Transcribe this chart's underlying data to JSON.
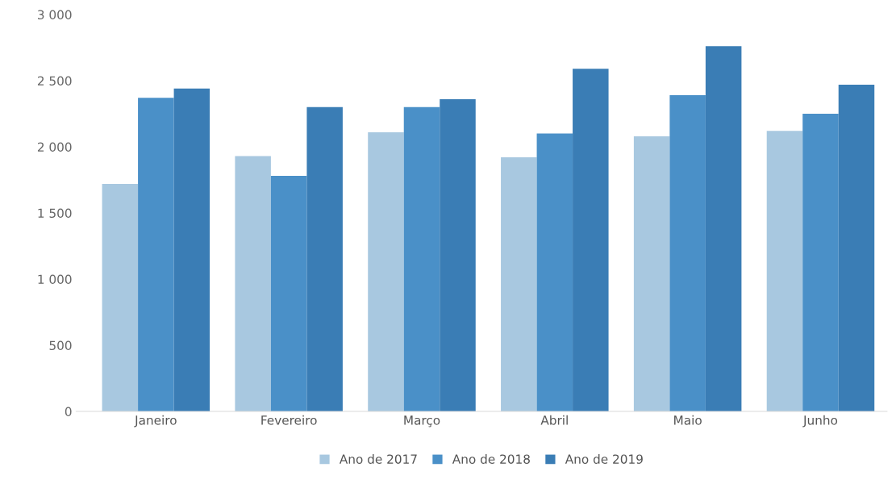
{
  "chart_data": {
    "type": "bar",
    "categories": [
      "Janeiro",
      "Fevereiro",
      "Março",
      "Abril",
      "Maio",
      "Junho"
    ],
    "series": [
      {
        "name": "Ano de 2017",
        "color": "#a8c8e0",
        "values": [
          1720,
          1930,
          2110,
          1920,
          2080,
          2120
        ]
      },
      {
        "name": "Ano de 2018",
        "color": "#4a90c8",
        "values": [
          2370,
          1780,
          2300,
          2100,
          2390,
          2250
        ]
      },
      {
        "name": "Ano de 2019",
        "color": "#3a7db5",
        "values": [
          2440,
          2300,
          2360,
          2590,
          2760,
          2470
        ]
      }
    ],
    "ylim": [
      0,
      3000
    ],
    "yticks": [
      {
        "value": 0,
        "label": "0"
      },
      {
        "value": 500,
        "label": "500"
      },
      {
        "value": 1000,
        "label": "1 000"
      },
      {
        "value": 1500,
        "label": "1 500"
      },
      {
        "value": 2000,
        "label": "2 000"
      },
      {
        "value": 2500,
        "label": "2 500"
      },
      {
        "value": 3000,
        "label": "3 000"
      }
    ],
    "grid": false,
    "legend": "bottom"
  }
}
